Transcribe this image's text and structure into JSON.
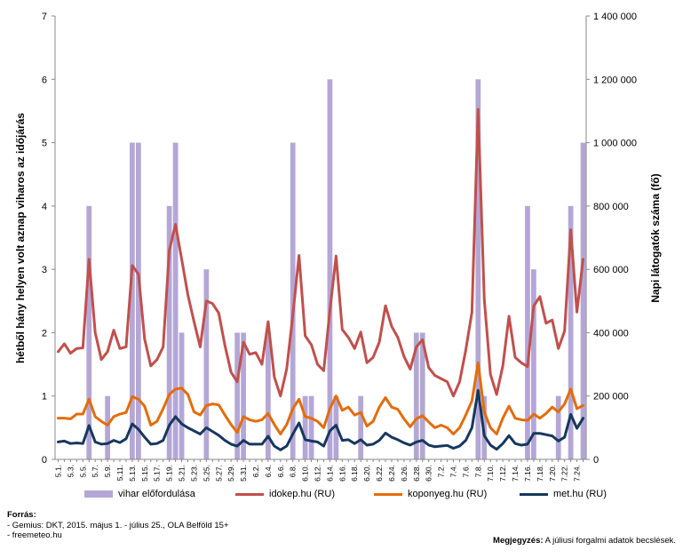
{
  "chart_data": {
    "type": "bar",
    "categories": [
      "5.1.",
      "5.2.",
      "5.3.",
      "5.4.",
      "5.5.",
      "5.6.",
      "5.7.",
      "5.8.",
      "5.9.",
      "5.10.",
      "5.11.",
      "5.12.",
      "5.13.",
      "5.14.",
      "5.15.",
      "5.16.",
      "5.17.",
      "5.18.",
      "5.19.",
      "5.20.",
      "5.21.",
      "5.22.",
      "5.23.",
      "5.24.",
      "5.25.",
      "5.26.",
      "5.27.",
      "5.28.",
      "5.29.",
      "5.30.",
      "5.31.",
      "6.1.",
      "6.2.",
      "6.3.",
      "6.4.",
      "6.5.",
      "6.6.",
      "6.7.",
      "6.8.",
      "6.9.",
      "6.10.",
      "6.11.",
      "6.12.",
      "6.13.",
      "6.14.",
      "6.15.",
      "6.16.",
      "6.17.",
      "6.18.",
      "6.19.",
      "6.20.",
      "6.21.",
      "6.22.",
      "6.23.",
      "6.24.",
      "6.25.",
      "6.26.",
      "6.27.",
      "6.28.",
      "6.29.",
      "6.30.",
      "7.1.",
      "7.2.",
      "7.3.",
      "7.4.",
      "7.5.",
      "7.6.",
      "7.7.",
      "7.8.",
      "7.9.",
      "7.10.",
      "7.11.",
      "7.12.",
      "7.13.",
      "7.14.",
      "7.15.",
      "7.16.",
      "7.17.",
      "7.18.",
      "7.19.",
      "7.20.",
      "7.21.",
      "7.22.",
      "7.23.",
      "7.24.",
      "7.25."
    ],
    "xticks_shown": [
      "5.1.",
      "5.3.",
      "5.5.",
      "5.7.",
      "5.9.",
      "5.11.",
      "5.13.",
      "5.15.",
      "5.17.",
      "5.19.",
      "5.21.",
      "5.23.",
      "5.25.",
      "5.27.",
      "5.29.",
      "5.31.",
      "6.2.",
      "6.4.",
      "6.6.",
      "6.8.",
      "6.10.",
      "6.12.",
      "6.14.",
      "6.16.",
      "6.18.",
      "6.20.",
      "6.22.",
      "6.24.",
      "6.26.",
      "6.28.",
      "6.30.",
      "7.2.",
      "7.4.",
      "7.6.",
      "7.8.",
      "7.10.",
      "7.12.",
      "7.14.",
      "7.16.",
      "7.18.",
      "7.20.",
      "7.22.",
      "7.24."
    ],
    "series": [
      {
        "name": "vihar előfordulása",
        "kind": "bar",
        "axis": "left",
        "color": "#b4a7d6",
        "values": [
          0,
          0,
          0,
          0,
          0,
          4,
          0,
          0,
          1,
          0,
          0,
          0,
          5,
          5,
          0,
          0,
          0,
          0,
          4,
          5,
          2,
          0,
          0,
          0,
          3,
          0,
          0,
          0,
          0,
          2,
          2,
          0,
          0,
          0,
          2,
          0,
          0,
          0,
          5,
          0,
          1,
          1,
          0,
          0,
          6,
          1,
          0,
          0,
          0,
          1,
          0,
          0,
          0,
          0,
          0,
          0,
          0,
          0,
          2,
          2,
          0,
          0,
          0,
          0,
          0,
          0,
          0,
          0,
          6,
          1,
          0,
          0,
          0,
          0,
          0,
          0,
          4,
          3,
          0,
          0,
          0,
          1,
          0,
          4,
          0,
          5
        ]
      },
      {
        "name": "idokep.hu (RU)",
        "kind": "line",
        "axis": "right",
        "color": "#c0504d",
        "values": [
          340000,
          365000,
          335000,
          350000,
          352000,
          632000,
          400000,
          315000,
          340000,
          408000,
          350000,
          355000,
          612000,
          585000,
          380000,
          295000,
          315000,
          355000,
          660000,
          742000,
          632000,
          520000,
          435000,
          355000,
          500000,
          492000,
          462000,
          360000,
          275000,
          245000,
          370000,
          332000,
          337000,
          300000,
          435000,
          260000,
          200000,
          285000,
          455000,
          644000,
          390000,
          362000,
          300000,
          280000,
          470000,
          642000,
          410000,
          385000,
          350000,
          402000,
          305000,
          322000,
          370000,
          485000,
          420000,
          385000,
          325000,
          285000,
          355000,
          378000,
          290000,
          265000,
          255000,
          245000,
          200000,
          245000,
          345000,
          465000,
          1105000,
          505000,
          268000,
          205000,
          295000,
          452000,
          322000,
          305000,
          293000,
          484000,
          514000,
          430000,
          440000,
          350000,
          405000,
          725000,
          465000,
          632000
        ]
      },
      {
        "name": "koponyeg.hu (RU)",
        "kind": "line",
        "axis": "right",
        "color": "#e36c0a",
        "values": [
          130000,
          130000,
          128000,
          143000,
          143000,
          190000,
          135000,
          120000,
          108000,
          135000,
          143000,
          148000,
          198000,
          190000,
          168000,
          108000,
          120000,
          160000,
          205000,
          222000,
          225000,
          205000,
          150000,
          140000,
          170000,
          175000,
          172000,
          140000,
          110000,
          85000,
          135000,
          125000,
          120000,
          125000,
          145000,
          110000,
          80000,
          110000,
          160000,
          190000,
          135000,
          130000,
          120000,
          100000,
          160000,
          200000,
          155000,
          165000,
          140000,
          148000,
          105000,
          120000,
          165000,
          195000,
          165000,
          158000,
          128000,
          103000,
          128000,
          138000,
          118000,
          100000,
          108000,
          100000,
          80000,
          100000,
          140000,
          185000,
          305000,
          150000,
          100000,
          80000,
          130000,
          168000,
          130000,
          125000,
          123000,
          143000,
          130000,
          145000,
          165000,
          150000,
          175000,
          222000,
          160000,
          170000
        ]
      },
      {
        "name": "met.hu (RU)",
        "kind": "line",
        "axis": "right",
        "color": "#17375e",
        "values": [
          55000,
          58000,
          50000,
          52000,
          50000,
          107000,
          55000,
          48000,
          50000,
          60000,
          53000,
          65000,
          112000,
          95000,
          70000,
          48000,
          50000,
          60000,
          108000,
          135000,
          112000,
          100000,
          90000,
          80000,
          100000,
          88000,
          76000,
          60000,
          48000,
          42000,
          60000,
          48000,
          48000,
          48000,
          73000,
          42000,
          30000,
          42000,
          80000,
          115000,
          62000,
          58000,
          55000,
          42000,
          90000,
          108000,
          60000,
          62000,
          50000,
          62000,
          45000,
          48000,
          60000,
          83000,
          70000,
          62000,
          52000,
          45000,
          55000,
          60000,
          45000,
          40000,
          42000,
          44000,
          35000,
          42000,
          60000,
          100000,
          218000,
          75000,
          45000,
          32000,
          50000,
          75000,
          50000,
          45000,
          48000,
          82000,
          82000,
          78000,
          74000,
          58000,
          70000,
          142000,
          98000,
          130000
        ]
      }
    ],
    "ylabel_left": "hétből hány helyen volt aznap viharos az időjárás",
    "ylabel_right": "Napi látogatók száma (fő)",
    "ylim_left": [
      0,
      7
    ],
    "yticks_left": [
      "0",
      "1",
      "2",
      "3",
      "4",
      "5",
      "6",
      "7"
    ],
    "ylim_right": [
      0,
      1400000
    ],
    "yticks_right": [
      "0",
      "200 000",
      "400 000",
      "600 000",
      "800 000",
      "1 000 000",
      "1 200 000",
      "1 400 000"
    ],
    "grid": false,
    "legend_position": "bottom"
  },
  "legend": {
    "items": [
      {
        "label": "vihar előfordulása"
      },
      {
        "label": "idokep.hu (RU)"
      },
      {
        "label": "koponyeg.hu (RU)"
      },
      {
        "label": "met.hu (RU)"
      }
    ]
  },
  "source": {
    "title": "Forrás:",
    "lines": [
      "- Gemius: DKT, 2015. május 1. - július 25., OLA Belföld 15+",
      "- freemeteo.hu"
    ]
  },
  "note": {
    "label": "Megjegyzés:",
    "text": " A júliusi forgalmi adatok becslések."
  }
}
